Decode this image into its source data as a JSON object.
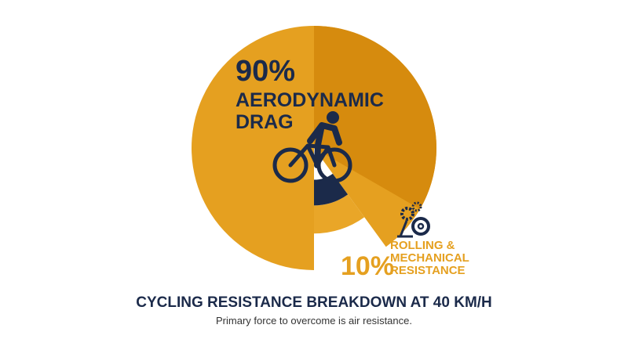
{
  "chart_data": {
    "type": "pie",
    "title": "CYCLING RESISTANCE BREAKDOWN AT 40 KM/H",
    "subtitle": "Primary force to overcome is air resistance.",
    "categories": [
      "AERODYNAMIC DRAG",
      "ROLLING & MECHANICAL RESISTANCE"
    ],
    "values": [
      90,
      10
    ],
    "value_labels": [
      "90%",
      "10%"
    ],
    "colors": [
      "#e5a020",
      "#1b2a4a"
    ]
  }
}
